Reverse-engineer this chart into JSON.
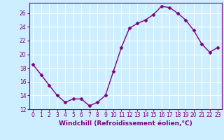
{
  "x": [
    0,
    1,
    2,
    3,
    4,
    5,
    6,
    7,
    8,
    9,
    10,
    11,
    12,
    13,
    14,
    15,
    16,
    17,
    18,
    19,
    20,
    21,
    22,
    23
  ],
  "y": [
    18.5,
    17.0,
    15.5,
    14.0,
    13.0,
    13.5,
    13.5,
    12.5,
    13.0,
    14.0,
    17.5,
    21.0,
    23.8,
    24.5,
    25.0,
    25.8,
    27.0,
    26.8,
    26.0,
    25.0,
    23.5,
    21.5,
    20.3,
    21.0
  ],
  "line_color": "#800080",
  "marker": "D",
  "marker_size": 2.5,
  "line_width": 1.0,
  "bg_color": "#cceeff",
  "grid_color": "#ffffff",
  "xlabel": "Windchill (Refroidissement éolien,°C)",
  "xlim": [
    -0.5,
    23.5
  ],
  "ylim": [
    12,
    27.5
  ],
  "yticks": [
    12,
    14,
    16,
    18,
    20,
    22,
    24,
    26
  ],
  "xticks": [
    0,
    1,
    2,
    3,
    4,
    5,
    6,
    7,
    8,
    9,
    10,
    11,
    12,
    13,
    14,
    15,
    16,
    17,
    18,
    19,
    20,
    21,
    22,
    23
  ],
  "tick_label_color": "#800080",
  "tick_label_fontsize": 5.5,
  "xlabel_fontsize": 6.5,
  "spine_color": "#800080"
}
